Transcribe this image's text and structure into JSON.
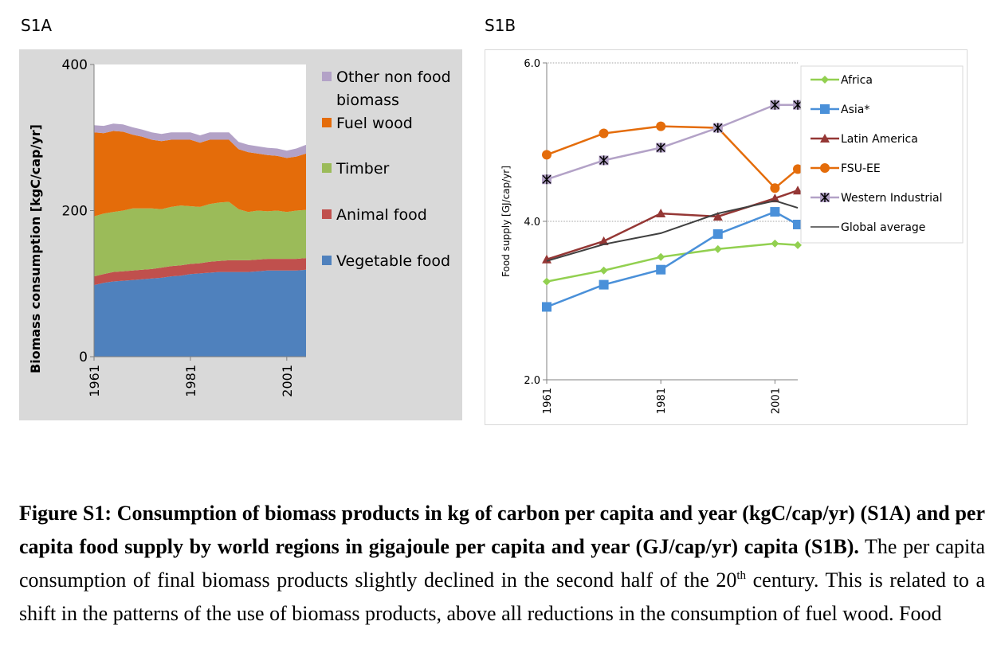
{
  "panels": {
    "a": "S1A",
    "b": "S1B"
  },
  "chart_data": [
    {
      "type": "area",
      "stacked": true,
      "ylabel": "Biomass consumption [kgC/cap/yr]",
      "ylim": [
        0,
        400
      ],
      "yticks": [
        0,
        200,
        400
      ],
      "xticks": [
        1961,
        1981,
        2001
      ],
      "xlim": [
        1961,
        2005
      ],
      "grid": false,
      "legend_position": "right",
      "x": [
        1961,
        1963,
        1965,
        1967,
        1969,
        1971,
        1973,
        1975,
        1977,
        1979,
        1981,
        1983,
        1985,
        1987,
        1989,
        1991,
        1993,
        1995,
        1997,
        1999,
        2001,
        2003,
        2005
      ],
      "series": [
        {
          "name": "Vegetable food",
          "color": "#4f81bd",
          "values": [
            98,
            101,
            103,
            104,
            105,
            106,
            107,
            108,
            110,
            111,
            113,
            114,
            115,
            116,
            116,
            116,
            116,
            117,
            118,
            118,
            118,
            118,
            119
          ]
        },
        {
          "name": "Animal food",
          "color": "#c0504d",
          "values": [
            12,
            12,
            13,
            13,
            13,
            13,
            13,
            14,
            14,
            14,
            14,
            14,
            15,
            15,
            16,
            16,
            16,
            16,
            16,
            16,
            16,
            16,
            16
          ]
        },
        {
          "name": "Timber",
          "color": "#9bbb59",
          "values": [
            82,
            83,
            82,
            83,
            85,
            84,
            83,
            80,
            81,
            82,
            79,
            77,
            79,
            80,
            80,
            70,
            66,
            67,
            65,
            66,
            64,
            66,
            66
          ]
        },
        {
          "name": "Fuel wood",
          "color": "#e46c0a",
          "values": [
            115,
            110,
            111,
            108,
            101,
            98,
            94,
            93,
            92,
            90,
            91,
            88,
            88,
            86,
            85,
            82,
            82,
            78,
            77,
            75,
            74,
            74,
            77
          ]
        },
        {
          "name": "Other non food biomass",
          "color": "#b3a2c7",
          "values": [
            10,
            10,
            10,
            10,
            10,
            10,
            10,
            10,
            10,
            10,
            10,
            10,
            10,
            10,
            10,
            10,
            10,
            10,
            10,
            10,
            10,
            11,
            12
          ]
        }
      ]
    },
    {
      "type": "line",
      "ylabel": "Food supply [GJ/cap/yr]",
      "ylim": [
        2.0,
        6.0
      ],
      "yticks": [
        "2.0",
        "4.0",
        "6.0"
      ],
      "xticks": [
        1961,
        1981,
        2001
      ],
      "xlim": [
        1961,
        2005
      ],
      "grid": true,
      "legend_position": "right",
      "x": [
        1961,
        1971,
        1981,
        1991,
        2001,
        2005
      ],
      "series": [
        {
          "name": "Africa",
          "color": "#92d050",
          "marker": "diamond",
          "values": [
            3.24,
            3.38,
            3.55,
            3.65,
            3.72,
            3.7
          ]
        },
        {
          "name": "Asia*",
          "color": "#4a90d9",
          "marker": "square",
          "values": [
            2.92,
            3.2,
            3.39,
            3.84,
            4.12,
            3.96
          ]
        },
        {
          "name": "Latin America",
          "color": "#953735",
          "marker": "triangle",
          "values": [
            3.52,
            3.75,
            4.1,
            4.06,
            4.29,
            4.39
          ]
        },
        {
          "name": "FSU-EE",
          "color": "#e46c0a",
          "marker": "circle",
          "values": [
            4.84,
            5.11,
            5.2,
            5.18,
            4.42,
            4.66
          ]
        },
        {
          "name": "Western Industrial",
          "color": "#b3a2c7",
          "marker": "star",
          "values": [
            4.53,
            4.77,
            4.93,
            5.18,
            5.47,
            5.47
          ]
        },
        {
          "name": "Global average",
          "color": "#404040",
          "marker": "none",
          "x": [
            1961,
            1971,
            1981,
            1991,
            2001,
            2005
          ],
          "values": [
            3.5,
            3.71,
            3.85,
            4.1,
            4.26,
            4.17
          ]
        }
      ]
    }
  ],
  "caption": {
    "bold": "Figure S1: Consumption of biomass products in kg of carbon per capita and year (kgC/cap/yr) (S1A) and per capita food supply by world regions in gigajoule per capita and year (GJ/cap/yr) capita (S1B).",
    "text_1": " The per capita consumption of final biomass products slightly declined in the second half of the 20",
    "sup": "th",
    "text_2": " century. This is related to a shift in the patterns of the use of biomass products, above all reductions in the consumption of fuel wood. Food"
  }
}
